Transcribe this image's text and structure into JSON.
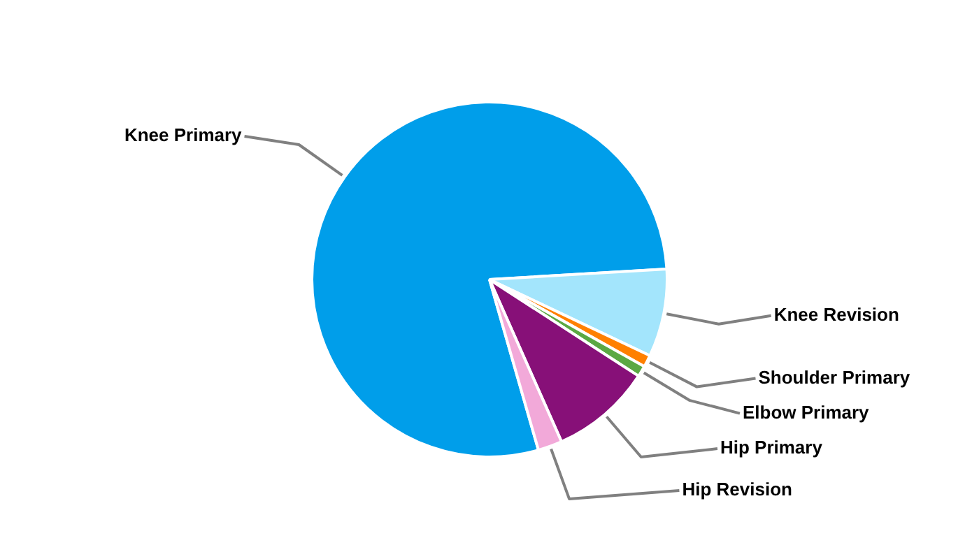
{
  "chart_data": {
    "type": "pie",
    "categories": [
      "Knee Primary",
      "Knee Revision",
      "Shoulder Primary",
      "Elbow Primary",
      "Hip Primary",
      "Hip Revision"
    ],
    "values": [
      78.5,
      8,
      1.1,
      1,
      9.2,
      2.2
    ],
    "colors": [
      "#009eea",
      "#a3e5fc",
      "#ff8000",
      "#5ba843",
      "#871078",
      "#f2a9d9"
    ]
  }
}
